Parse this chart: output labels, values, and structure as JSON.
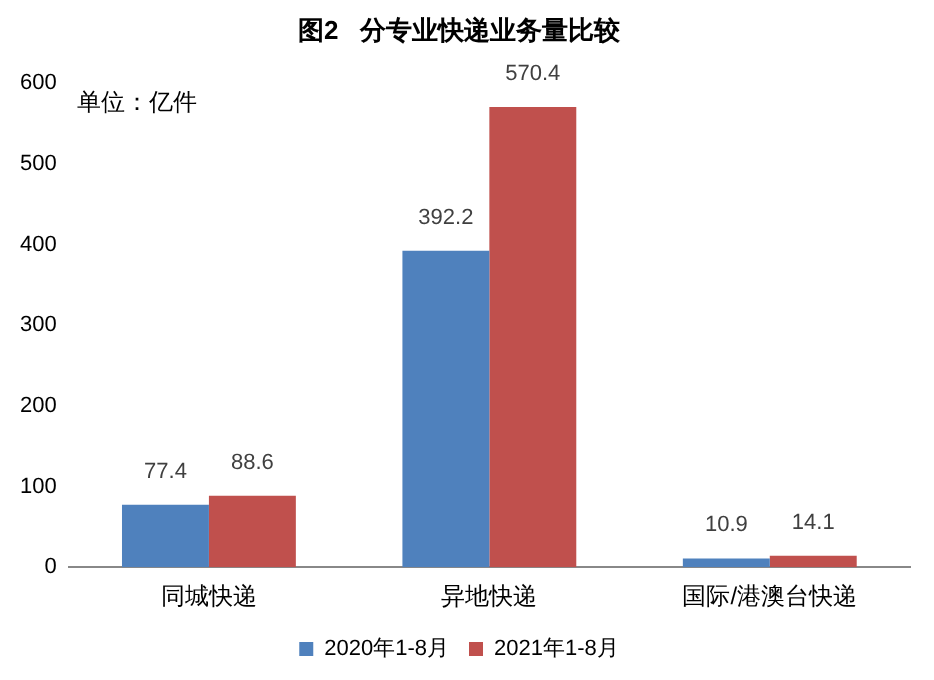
{
  "chart_data": {
    "type": "bar",
    "title": "图2   分专业快递业务量比较",
    "categories": [
      "同城快递",
      "异地快递",
      "国际/港澳台快递"
    ],
    "series": [
      {
        "name": "2020年1-8月",
        "color": "#4f81bd",
        "values": [
          77.4,
          392.2,
          10.9
        ]
      },
      {
        "name": "2021年1-8月",
        "color": "#c0504d",
        "values": [
          88.6,
          570.4,
          14.1
        ]
      }
    ],
    "ylim": [
      0,
      600
    ],
    "yticks": [
      0,
      100,
      200,
      300,
      400,
      500,
      600
    ],
    "grid": false,
    "legend": "bottom",
    "data_labels": true,
    "annotations": [
      "单位：亿件"
    ]
  }
}
